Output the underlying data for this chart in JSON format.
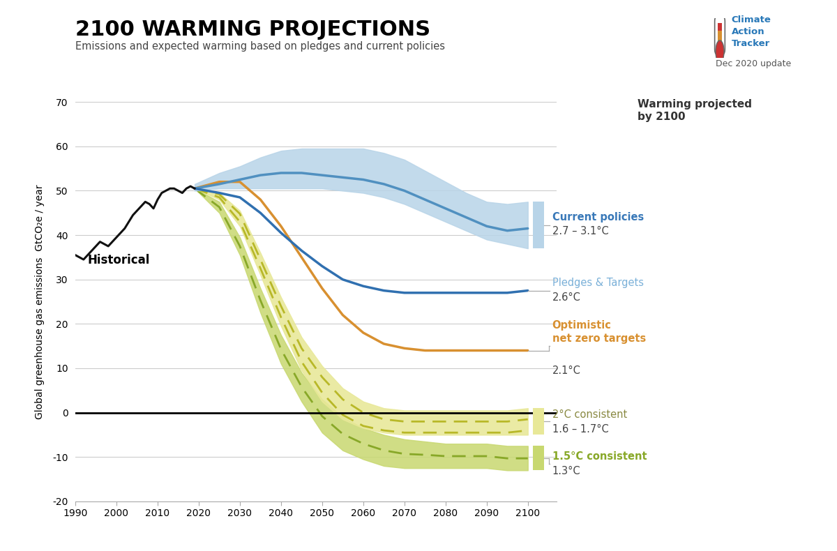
{
  "title": "2100 WARMING PROJECTIONS",
  "subtitle": "Emissions and expected warming based on pledges and current policies",
  "ylabel": "Global greenhouse gas emissions  GtCO₂e / year",
  "date_label": "Dec 2020 update",
  "ylim": [
    -20,
    70
  ],
  "xlim": [
    1990,
    2107
  ],
  "yticks": [
    -20,
    -10,
    0,
    10,
    20,
    30,
    40,
    50,
    60,
    70
  ],
  "xticks": [
    1990,
    2000,
    2010,
    2020,
    2030,
    2040,
    2050,
    2060,
    2070,
    2080,
    2090,
    2100
  ],
  "historical_color": "#111111",
  "cp_fill_color": "#b8d4e8",
  "cp_line_color": "#5090c0",
  "pledges_line_color": "#3070b0",
  "pledges_label_color": "#7ab0d8",
  "optimistic_color": "#d89030",
  "two_deg_fill_color": "#e8e898",
  "two_deg_dash_color": "#b8b828",
  "one5_fill_color": "#c8d870",
  "one5_dash_color": "#88a828",
  "zero_line_color": "#000000",
  "grid_color": "#cccccc",
  "current_label_color": "#3878b8",
  "optimistic_label_color": "#d89030",
  "two_deg_label_color": "#888840",
  "one5_deg_label_color": "#88a828",
  "historical_x": [
    1990,
    1991,
    1992,
    1993,
    1994,
    1995,
    1996,
    1997,
    1998,
    1999,
    2000,
    2001,
    2002,
    2003,
    2004,
    2005,
    2006,
    2007,
    2008,
    2009,
    2010,
    2011,
    2012,
    2013,
    2014,
    2015,
    2016,
    2017,
    2018,
    2019
  ],
  "historical_y": [
    35.5,
    35.0,
    34.5,
    35.5,
    36.5,
    37.5,
    38.5,
    38.0,
    37.5,
    38.5,
    39.5,
    40.5,
    41.5,
    43.0,
    44.5,
    45.5,
    46.5,
    47.5,
    47.0,
    46.0,
    48.0,
    49.5,
    50.0,
    50.5,
    50.5,
    50.0,
    49.5,
    50.5,
    51.0,
    50.5
  ],
  "proj_x": [
    2019,
    2025,
    2030,
    2035,
    2040,
    2045,
    2050,
    2055,
    2060,
    2065,
    2070,
    2075,
    2080,
    2085,
    2090,
    2095,
    2100
  ],
  "cp_upper": [
    51.5,
    54.0,
    55.5,
    57.5,
    59.0,
    59.5,
    59.5,
    59.5,
    59.5,
    58.5,
    57.0,
    54.5,
    52.0,
    49.5,
    47.5,
    47.0,
    47.5
  ],
  "cp_lower": [
    50.0,
    50.5,
    50.5,
    50.5,
    50.5,
    50.5,
    50.5,
    50.0,
    49.5,
    48.5,
    47.0,
    45.0,
    43.0,
    41.0,
    39.0,
    38.0,
    37.0
  ],
  "cp_line": [
    50.5,
    51.5,
    52.5,
    53.5,
    54.0,
    54.0,
    53.5,
    53.0,
    52.5,
    51.5,
    50.0,
    48.0,
    46.0,
    44.0,
    42.0,
    41.0,
    41.5
  ],
  "pledges_line": [
    50.5,
    49.5,
    48.5,
    45.0,
    40.5,
    36.5,
    33.0,
    30.0,
    28.5,
    27.5,
    27.0,
    27.0,
    27.0,
    27.0,
    27.0,
    27.0,
    27.5
  ],
  "optimistic_line": [
    50.5,
    52.0,
    52.0,
    48.0,
    42.0,
    35.0,
    28.0,
    22.0,
    18.0,
    15.5,
    14.5,
    14.0,
    14.0,
    14.0,
    14.0,
    14.0,
    14.0
  ],
  "two_upper": [
    50.5,
    49.5,
    45.5,
    36.0,
    26.0,
    17.0,
    10.5,
    5.5,
    2.5,
    1.0,
    0.5,
    0.5,
    0.5,
    0.5,
    0.5,
    0.5,
    1.0
  ],
  "two_lower": [
    50.5,
    48.0,
    42.0,
    31.0,
    19.5,
    9.5,
    2.5,
    -1.5,
    -3.5,
    -4.5,
    -5.0,
    -5.0,
    -5.0,
    -5.0,
    -5.0,
    -5.0,
    -5.0
  ],
  "two_dash1": [
    50.5,
    49.2,
    44.8,
    34.5,
    24.0,
    14.5,
    8.0,
    3.0,
    0.0,
    -1.5,
    -2.0,
    -2.0,
    -2.0,
    -2.0,
    -2.0,
    -2.0,
    -1.5
  ],
  "two_dash2": [
    50.5,
    48.5,
    43.0,
    32.5,
    21.5,
    11.5,
    4.5,
    -0.5,
    -3.0,
    -4.0,
    -4.5,
    -4.5,
    -4.5,
    -4.5,
    -4.5,
    -4.5,
    -4.0
  ],
  "one5_upper": [
    50.5,
    47.5,
    39.5,
    28.0,
    17.5,
    9.0,
    3.0,
    -1.0,
    -3.5,
    -5.0,
    -6.0,
    -6.5,
    -7.0,
    -7.0,
    -7.0,
    -7.5,
    -7.5
  ],
  "one5_lower": [
    50.5,
    45.0,
    35.5,
    22.5,
    11.0,
    2.5,
    -4.5,
    -8.5,
    -10.5,
    -12.0,
    -12.5,
    -12.5,
    -12.5,
    -12.5,
    -12.5,
    -13.0,
    -13.0
  ],
  "one5_dash": [
    50.5,
    46.3,
    37.5,
    25.3,
    14.3,
    5.8,
    -0.8,
    -4.8,
    -7.0,
    -8.5,
    -9.3,
    -9.5,
    -9.8,
    -9.8,
    -9.8,
    -10.3,
    -10.3
  ]
}
